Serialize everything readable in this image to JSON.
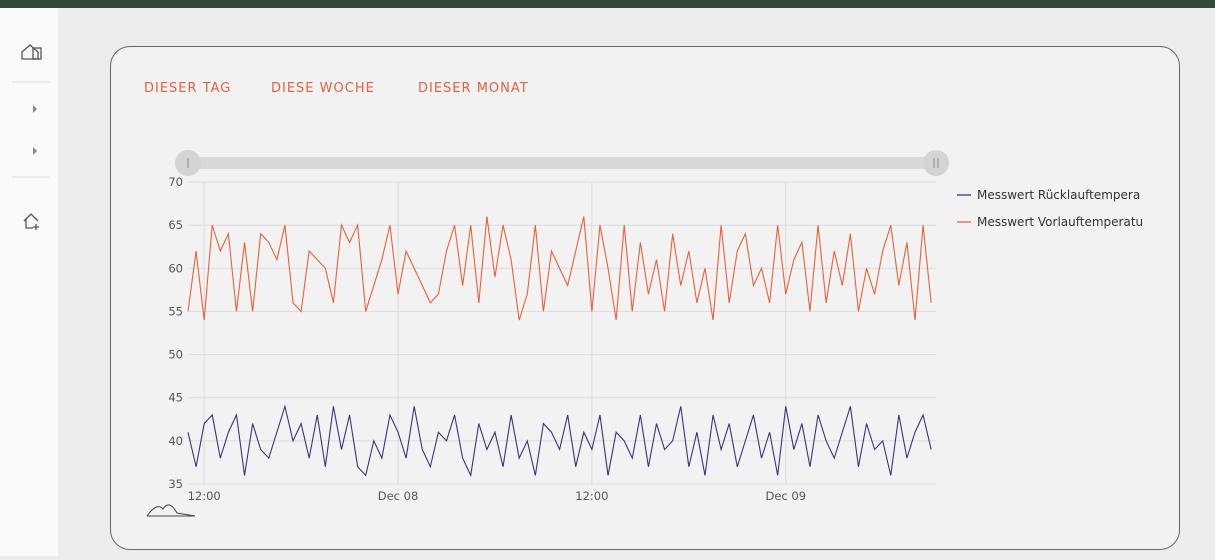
{
  "tabs": [
    "DIESER TAG",
    "DIESE WOCHE",
    "DIESER MONAT"
  ],
  "chart_data": {
    "type": "line",
    "x": [
      11,
      11.5,
      12,
      12.5,
      13,
      13.5,
      14,
      14.5,
      15,
      15.5,
      16,
      16.5,
      17,
      17.5,
      18,
      18.5,
      19,
      19.5,
      20,
      20.5,
      21,
      21.5,
      22,
      22.5,
      23,
      23.5,
      24,
      24.5,
      25,
      25.5,
      26,
      26.5,
      27,
      27.5,
      28,
      28.5,
      29,
      29.5,
      30,
      30.5,
      31,
      31.5,
      32,
      32.5,
      33,
      33.5,
      34,
      34.5,
      35,
      35.5,
      36,
      36.5,
      37,
      37.5,
      38,
      38.5,
      39,
      39.5,
      40,
      40.5,
      41,
      41.5,
      42,
      42.5,
      43,
      43.5,
      44,
      44.5,
      45,
      45.5,
      46,
      46.5,
      47,
      47.5,
      48,
      48.5,
      49,
      49.5,
      50,
      50.5,
      51,
      51.5,
      52,
      52.5,
      53,
      53.5,
      54,
      54.5,
      55,
      55.5,
      56,
      56.5,
      57
    ],
    "series": [
      {
        "name": "Messwert Rücklauftempera",
        "color": "#3b3478",
        "values": [
          41,
          37,
          42,
          43,
          38,
          41,
          43,
          36,
          42,
          39,
          38,
          41,
          44,
          40,
          42,
          38,
          43,
          37,
          44,
          39,
          43,
          37,
          36,
          40,
          38,
          43,
          41,
          38,
          44,
          39,
          37,
          41,
          40,
          43,
          38,
          36,
          42,
          39,
          41,
          37,
          43,
          38,
          40,
          36,
          42,
          41,
          39,
          43,
          37,
          41,
          39,
          43,
          36,
          41,
          40,
          38,
          43,
          37,
          42,
          39,
          40,
          44,
          37,
          41,
          36,
          43,
          39,
          42,
          37,
          40,
          43,
          38,
          41,
          36,
          44,
          39,
          42,
          37,
          43,
          40,
          38,
          41,
          44,
          37,
          42,
          39,
          40,
          36,
          43,
          38,
          41,
          43,
          39
        ]
      },
      {
        "name": "Messwert Vorlauftemperatu",
        "color": "#e8603c",
        "values": [
          55,
          62,
          54,
          65,
          62,
          64,
          55,
          63,
          55,
          64,
          63,
          61,
          65,
          56,
          55,
          62,
          61,
          60,
          56,
          65,
          63,
          65,
          55,
          58,
          61,
          65,
          57,
          62,
          60,
          58,
          56,
          57,
          62,
          65,
          58,
          65,
          56,
          66,
          59,
          65,
          61,
          54,
          57,
          65,
          55,
          62,
          60,
          58,
          62,
          66,
          55,
          65,
          60,
          54,
          65,
          55,
          63,
          57,
          61,
          55,
          64,
          58,
          62,
          56,
          60,
          54,
          65,
          56,
          62,
          64,
          58,
          60,
          56,
          65,
          57,
          61,
          63,
          55,
          65,
          56,
          62,
          58,
          64,
          55,
          60,
          57,
          62,
          65,
          58,
          63,
          54,
          65,
          56
        ]
      }
    ],
    "xlim": [
      11,
      57.3
    ],
    "xticks": [
      {
        "value": 12,
        "label": "12:00"
      },
      {
        "value": 24,
        "label": "Dec 08"
      },
      {
        "value": 36,
        "label": "12:00"
      },
      {
        "value": 48,
        "label": "Dec 09"
      }
    ],
    "ylim": [
      35,
      70
    ],
    "yticks": [
      35,
      40,
      45,
      50,
      55,
      60,
      65,
      70
    ],
    "grid": true
  }
}
